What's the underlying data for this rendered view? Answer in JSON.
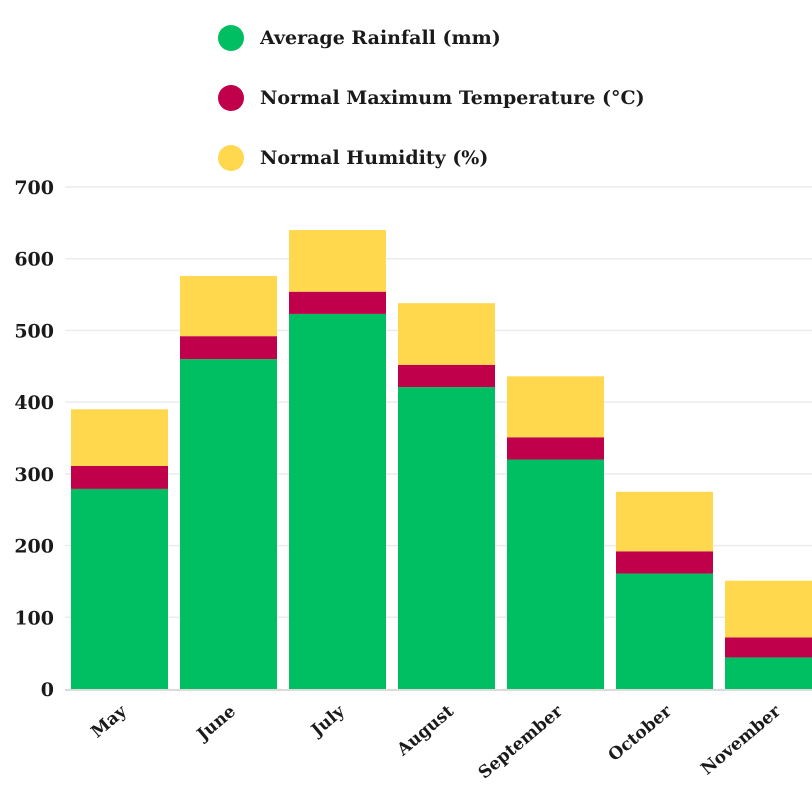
{
  "chart_data": {
    "type": "bar",
    "stacked": true,
    "categories": [
      "May",
      "June",
      "July",
      "August",
      "September",
      "October",
      "November"
    ],
    "series": [
      {
        "name": "Average Rainfall (mm)",
        "color": "#00bf63",
        "values": [
          279,
          460,
          523,
          421,
          320,
          161,
          44
        ]
      },
      {
        "name": "Normal Maximum Temperature (°C)",
        "color": "#c1004b",
        "values": [
          32,
          32,
          31,
          31,
          31,
          31,
          28
        ]
      },
      {
        "name": "Normal Humidity (%)",
        "color": "#ffd84d",
        "values": [
          79,
          84,
          86,
          86,
          85,
          83,
          79
        ]
      }
    ],
    "ylim": [
      0,
      700
    ],
    "yticks": [
      0,
      100,
      200,
      300,
      400,
      500,
      600,
      700
    ],
    "grid": true,
    "legend_position": "top"
  }
}
